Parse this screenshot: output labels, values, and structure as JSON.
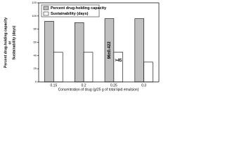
{
  "chart_data": {
    "type": "bar",
    "xlabel": "Concentration of drug (g/25 g of total lipid emulsion)",
    "ylabel": [
      "Percent drug-holding capacity",
      "or",
      "Sustainability (days)"
    ],
    "categories": [
      "0.15",
      "0.2",
      "0.25",
      "0.3"
    ],
    "series": [
      {
        "name": "Percent drug-holding capacity",
        "color": "#c0c0c0",
        "values": [
          92,
          90,
          96,
          96
        ],
        "value_labels": [
          null,
          null,
          "96±0.422",
          null
        ]
      },
      {
        "name": "Sustainability (days)",
        "color": "#ffffff",
        "values": [
          45,
          45,
          45,
          30
        ],
        "value_labels": [
          null,
          null,
          ">45",
          null
        ]
      }
    ],
    "ylim": [
      0,
      120
    ],
    "yticks": [
      0,
      20,
      40,
      60,
      80,
      100,
      120
    ],
    "legend": "top-left"
  }
}
